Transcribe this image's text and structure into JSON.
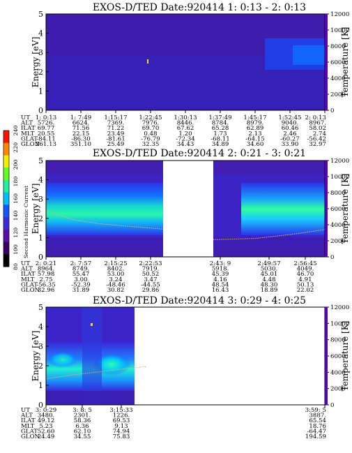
{
  "chart_data": [
    {
      "type": "heatmap",
      "title": "EXOS-D/TED   Date:920414  1: 0:13 - 2: 0:13",
      "ylabel": "Energy [eV]",
      "ylabel_right": "Temperature [K]",
      "ylim": [
        0,
        5
      ],
      "ylim_right": [
        0,
        12000
      ],
      "yticks": [
        "0",
        "1",
        "2",
        "3",
        "4",
        "5"
      ],
      "yticks_right": [
        "0",
        "2000",
        "4000",
        "6000",
        "8000",
        "10000",
        "12000"
      ],
      "gaps": [],
      "temperature_trace": [],
      "table": {
        "row_labels": [
          "UT",
          "ALT",
          "ILAT",
          "MLT",
          "GLAT",
          "GLON"
        ],
        "columns": [
          {
            "x": 0.0,
            "cells": [
              "1: 0:13",
              "5726.",
              "69.77",
              "20.55",
              "-84.11",
              "261.13"
            ]
          },
          {
            "x": 0.125,
            "cells": [
              "1: 7:49",
              "6624.",
              "71.56",
              "22.15",
              "-86.30",
              "351.10"
            ]
          },
          {
            "x": 0.25,
            "cells": [
              "1:15:17",
              "7369.",
              "71.22",
              "23.49",
              "-81.61",
              "25.49"
            ]
          },
          {
            "x": 0.375,
            "cells": [
              "1:22:45",
              "7976.",
              "69.70",
              "0.48",
              "-76.79",
              "32.35"
            ]
          },
          {
            "x": 0.5,
            "cells": [
              "1:30:13",
              "8446.",
              "67.62",
              "1.20",
              "-72.34",
              "34.43"
            ]
          },
          {
            "x": 0.625,
            "cells": [
              "1:37:49",
              "8784.",
              "65.28",
              "1.73",
              "-68.11",
              "34.89"
            ]
          },
          {
            "x": 0.75,
            "cells": [
              "1:45:17",
              "8979.",
              "62.89",
              "2.13",
              "-64.15",
              "34.60"
            ]
          },
          {
            "x": 0.875,
            "cells": [
              "1:52:45",
              "9040.",
              "60.46",
              "2.46",
              "-60.27",
              "33.90"
            ]
          },
          {
            "x": 1.0,
            "cells": [
              "2: 0:13",
              "8967.",
              "58.02",
              "2.74",
              "-56.42",
              "32.97"
            ]
          }
        ]
      }
    },
    {
      "type": "heatmap",
      "title": "EXOS-D/TED   Date:920414  2: 0:21 - 3: 0:21",
      "ylabel": "Energy [eV]",
      "ylabel_right": "Temperature [K]",
      "ylim": [
        0,
        5
      ],
      "ylim_right": [
        0,
        12000
      ],
      "yticks": [
        "0",
        "1",
        "2",
        "3",
        "4",
        "5"
      ],
      "yticks_right": [
        "0",
        "2000",
        "4000",
        "6000",
        "8000",
        "10000",
        "12000"
      ],
      "gaps": [
        [
          0.42,
          0.6
        ]
      ],
      "temperature_trace": [
        [
          0.0,
          5800
        ],
        [
          0.1,
          4600
        ],
        [
          0.2,
          4100
        ],
        [
          0.3,
          3800
        ],
        [
          0.42,
          3450
        ],
        [
          0.6,
          2150
        ],
        [
          0.75,
          2300
        ],
        [
          0.88,
          2800
        ],
        [
          1.0,
          3400
        ]
      ],
      "table": {
        "row_labels": [
          "UT",
          "ALT",
          "ILAT",
          "MLT",
          "GLAT",
          "GLON"
        ],
        "columns": [
          {
            "x": 0.0,
            "cells": [
              "2: 0:21",
              "8964.",
              "57.98",
              "2.75",
              "-56.35",
              "32.96"
            ]
          },
          {
            "x": 0.125,
            "cells": [
              "2: 7:57",
              "8749.",
              "55.47",
              "3.00",
              "-52.39",
              "31.89"
            ]
          },
          {
            "x": 0.25,
            "cells": [
              "2:15:25",
              "8402.",
              "53.00",
              "3.24",
              "-48.46",
              "30.82"
            ]
          },
          {
            "x": 0.375,
            "cells": [
              "2:22:53",
              "7919.",
              "50.52",
              "3.47",
              "-44.55",
              "29.86"
            ]
          },
          {
            "x": 0.625,
            "cells": [
              "2:43: 9",
              "5918.",
              "45.39",
              "4.16",
              "48.54",
              "16.43"
            ]
          },
          {
            "x": 0.8,
            "cells": [
              "2:49:57",
              "5030.",
              "45.01",
              "4.48",
              "48.30",
              "18.89"
            ]
          },
          {
            "x": 0.93,
            "cells": [
              "2:56:45",
              "4049.",
              "46.70",
              "4.91",
              "50.13",
              "22.02"
            ]
          }
        ]
      }
    },
    {
      "type": "heatmap",
      "title": "EXOS-D/TED   Date:920414  3: 0:29 - 4: 0:25",
      "ylabel": "Energy [eV]",
      "ylabel_right": "Temperature [K]",
      "ylim": [
        0,
        5
      ],
      "ylim_right": [
        0,
        12000
      ],
      "yticks": [
        "0",
        "1",
        "2",
        "3",
        "4",
        "5"
      ],
      "yticks_right": [
        "0",
        "2000",
        "4000",
        "6000",
        "8000",
        "10000",
        "12000"
      ],
      "gaps": [
        [
          0.36,
          1.0
        ]
      ],
      "temperature_trace": [
        [
          0.0,
          3200
        ],
        [
          0.1,
          3700
        ],
        [
          0.2,
          4100
        ],
        [
          0.3,
          4500
        ],
        [
          0.36,
          4700
        ]
      ],
      "table": {
        "row_labels": [
          "UT",
          "ALT",
          "ILAT",
          "MLT",
          "GLAT",
          "GLON"
        ],
        "columns": [
          {
            "x": 0.0,
            "cells": [
              "3: 0:29",
              "3480.",
              "49.12",
              "5.23",
              "52.60",
              "24.49"
            ]
          },
          {
            "x": 0.13,
            "cells": [
              "3: 8: 5",
              "2301.",
              "58.36",
              "6.36",
              "62.10",
              "34.55"
            ]
          },
          {
            "x": 0.27,
            "cells": [
              "3:15:33",
              "1226.",
              "69.53",
              "9.13",
              "74.94",
              "75.83"
            ]
          },
          {
            "x": 1.0,
            "cells": [
              "3:59: 5",
              "3887.",
              "65.54",
              "18.76",
              "-64.47",
              "194.59"
            ]
          }
        ]
      }
    }
  ],
  "colorbar": {
    "label": "Second Harmonic Current",
    "ticks": [
      "80",
      "100",
      "120",
      "140",
      "160",
      "180",
      "200",
      "220",
      "240"
    ],
    "colors": [
      "#000000",
      "#3a0060",
      "#5a10a8",
      "#3d2be0",
      "#1456ff",
      "#00c0ff",
      "#20f0a0",
      "#60ff20",
      "#f0f000",
      "#ff8800",
      "#ff1000"
    ]
  }
}
